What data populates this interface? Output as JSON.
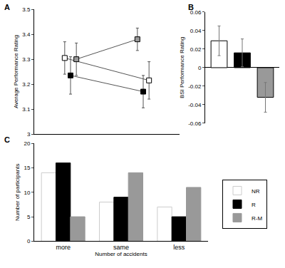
{
  "chart_data": [
    {
      "title": "A",
      "type": "line",
      "y_label": "Average Performance Rating",
      "categories": [
        null,
        null
      ],
      "series": [
        {
          "name": "NR",
          "color": "#ffffff",
          "marker": "square",
          "values": [
            3.305,
            3.215
          ],
          "error": [
            0.065,
            0.075
          ]
        },
        {
          "name": "R",
          "color": "#000000",
          "marker": "square",
          "values": [
            3.235,
            3.17
          ],
          "error": [
            0.075,
            0.065
          ]
        },
        {
          "name": "R-M",
          "color": "#999999",
          "marker": "square",
          "values": [
            3.3,
            3.38
          ],
          "error": [
            0.065,
            0.045
          ]
        }
      ],
      "ylim": [
        3,
        3.5
      ],
      "yticks": [
        3,
        3.1,
        3.2,
        3.3,
        3.4,
        3.5
      ],
      "tick_labels": "y",
      "grid": false
    },
    {
      "title": "B",
      "type": "bar",
      "y_label": "BSI Performance Rating",
      "categories": [
        null,
        null,
        null
      ],
      "values": [
        0.029,
        0.016,
        -0.032
      ],
      "error": [
        0.016,
        0.015,
        0.016
      ],
      "colors": [
        "#ffffff",
        "#000000",
        "#999999"
      ],
      "ylim": [
        -0.06,
        0.06
      ],
      "yticks": [
        -0.06,
        -0.04,
        -0.02,
        0,
        0.02,
        0.04,
        0.06
      ],
      "tick_labels": "y",
      "grid": false
    },
    {
      "title": "C",
      "type": "bar",
      "y_label": "Number of participants",
      "x_label": "Number of accidents",
      "categories": [
        "more",
        "same",
        "less"
      ],
      "series": [
        {
          "name": "NR",
          "color": "#ffffff",
          "values": [
            14,
            8,
            7
          ]
        },
        {
          "name": "R",
          "color": "#000000",
          "values": [
            16,
            9,
            5
          ]
        },
        {
          "name": "R-M",
          "color": "#999999",
          "values": [
            5,
            14,
            11
          ]
        }
      ],
      "ylim": [
        0,
        20
      ],
      "yticks": [
        0,
        5,
        10,
        15,
        20
      ],
      "legend": "right",
      "grid": false
    }
  ]
}
